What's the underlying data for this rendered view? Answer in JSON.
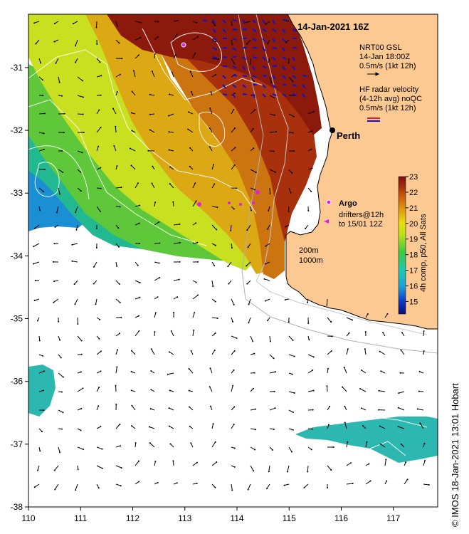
{
  "map": {
    "timestamp": "14-Jan-2021 16Z",
    "credit": "© IMOS 18-Jan-2021 13:01 Hobart",
    "city": "Perth",
    "x_axis": {
      "ticks": [
        "110",
        "111",
        "112",
        "113",
        "114",
        "115",
        "116",
        "117"
      ],
      "range": [
        110,
        117.85
      ]
    },
    "y_axis": {
      "ticks": [
        "-31",
        "-32",
        "-33",
        "-34",
        "-35",
        "-36",
        "-37",
        "-38"
      ],
      "range": [
        -38,
        -30.15
      ]
    },
    "legend": {
      "gsl_line1": "NRT00 GSL",
      "gsl_line2": "14-Jan 18:00Z",
      "gsl_line3": "0.5m/s (1kt 12h)",
      "radar_line1": "HF radar velocity",
      "radar_line2": "(4-12h avg) noQC",
      "radar_line3": "0.5m/s (1kt 12h)",
      "argo_label": "Argo",
      "drifters_line1": "drifters@12h",
      "drifters_line2": "to 15/01 12Z",
      "depth_200": "200m",
      "depth_1000": "1000m"
    },
    "colorbar": {
      "label": "4h comp, p50, All Sats",
      "ticks": [
        "23",
        "22",
        "21",
        "20",
        "19",
        "18",
        "17",
        "16",
        "15"
      ],
      "range": [
        14.2,
        23
      ]
    },
    "colors": {
      "land": "#fcc993",
      "ocean_nodata": "#ffffff",
      "sst_warm": "#8b1a0c",
      "sst_mid": "#d4a010",
      "sst_cool": "#c8e020",
      "sst_cold": "#1a8fd4",
      "radar_arrow": "#1010d0",
      "argo": "#e020e0"
    }
  }
}
